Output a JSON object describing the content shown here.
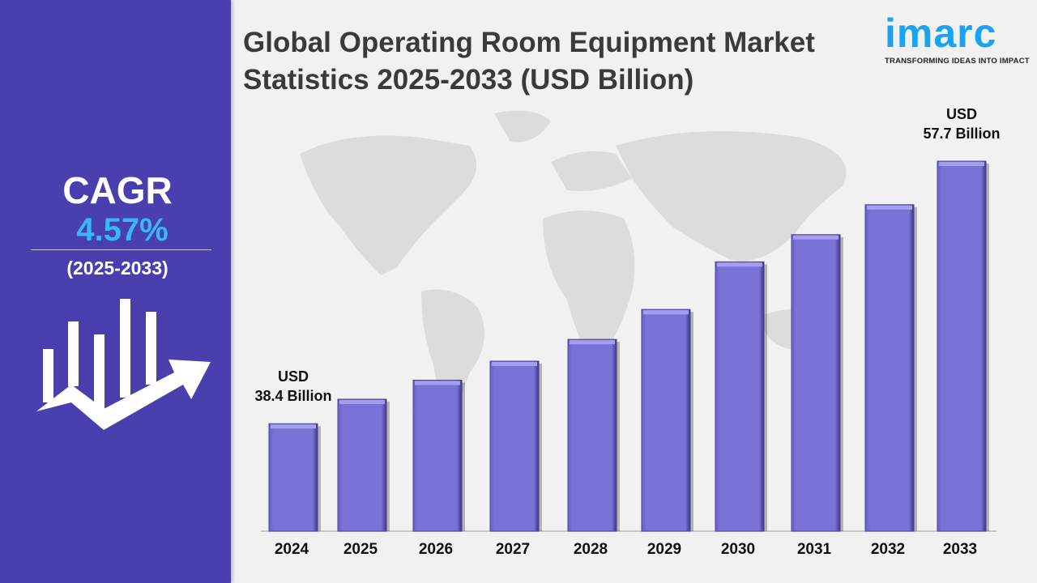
{
  "title": "Global Operating Room Equipment Market Statistics 2025-2033 (USD Billion)",
  "logo": {
    "word": "imarc",
    "tagline": "TRANSFORMING IDEAS INTO IMPACT",
    "color": "#1aa3f0"
  },
  "cagr": {
    "label": "CAGR",
    "value": "4.57%",
    "period": "(2025-2033)",
    "icon": "bar-chart-growth-arrow-icon"
  },
  "colors": {
    "panel": "#4a3fae",
    "bar": "#7b72d8",
    "cagr_value": "#3ab8f5"
  },
  "chart_data": {
    "type": "bar",
    "title": "Global Operating Room Equipment Market Statistics 2025-2033 (USD Billion)",
    "categories": [
      "2024",
      "2025",
      "2026",
      "2027",
      "2028",
      "2029",
      "2030",
      "2031",
      "2032",
      "2033"
    ],
    "values": [
      38.4,
      40.2,
      41.6,
      43.0,
      44.6,
      46.8,
      50.3,
      52.3,
      54.5,
      57.7
    ],
    "annotations": [
      {
        "category": "2024",
        "line1": "USD",
        "line2": "38.4 Billion"
      },
      {
        "category": "2033",
        "line1": "USD",
        "line2": "57.7 Billion"
      }
    ],
    "grid": false,
    "xlabel": "",
    "ylabel": ""
  }
}
